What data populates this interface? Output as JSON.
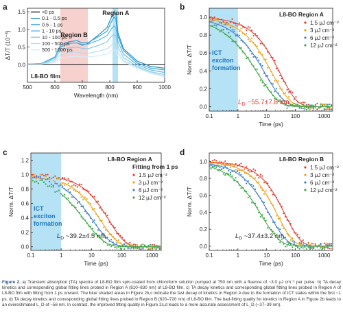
{
  "chart_data": [
    {
      "panel": "a",
      "type": "line",
      "xlabel": "Wavelength (nm)",
      "ylabel": "ΔT/T (10⁻³)",
      "xlim": [
        500,
        1000
      ],
      "ylim": [
        -0.5,
        1.6
      ],
      "xticks": [
        "500",
        "600",
        "700",
        "800",
        "900",
        "1000"
      ],
      "yticks": [
        "0.0",
        "0.5",
        "1.0",
        "1.5"
      ],
      "legend": [
        "<0 ps",
        "0.1 - 0.5 ps",
        "0.5 - 1 ps",
        "1 - 10 ps",
        "10 - 100 ps",
        "100 - 500 ps",
        "500 - 1000 ps"
      ],
      "legend_position": "top-left",
      "annotations": [
        "Region A",
        "Region B",
        "L8-BO film"
      ],
      "shaded": [
        {
          "label": "Region B",
          "from": 620,
          "to": 720,
          "color": "#f6c9c4"
        },
        {
          "label": "Region A",
          "from": 810,
          "to": 830,
          "color": "#a9ddf3"
        }
      ],
      "series_colors": [
        "#222222",
        "#1d8fce",
        "#34a2da",
        "#5db7e4",
        "#88cbec",
        "#b3ddf2",
        "#d6edf8"
      ],
      "series": [
        {
          "name": "<0 ps",
          "x": [
            500,
            550,
            600,
            650,
            700,
            750,
            800,
            850,
            900,
            950,
            1000
          ],
          "values": [
            0,
            0,
            0,
            0,
            0,
            0,
            0,
            0,
            0,
            0,
            0
          ]
        },
        {
          "name": "0.1 - 0.5 ps",
          "x": [
            500,
            550,
            600,
            620,
            650,
            680,
            700,
            720,
            760,
            790,
            805,
            815,
            822,
            830,
            850,
            900,
            950,
            1000
          ],
          "values": [
            0.02,
            0.03,
            0.2,
            0.5,
            0.6,
            0.62,
            0.55,
            0.6,
            0.85,
            1.05,
            1.32,
            1.5,
            1.45,
            0.9,
            0.45,
            0.1,
            -0.05,
            -0.1
          ]
        },
        {
          "name": "0.5 - 1 ps",
          "x": [
            500,
            550,
            600,
            620,
            650,
            680,
            700,
            720,
            760,
            790,
            805,
            815,
            822,
            830,
            850,
            900,
            950,
            1000
          ],
          "values": [
            0.02,
            0.03,
            0.22,
            0.55,
            0.65,
            0.68,
            0.62,
            0.62,
            0.8,
            0.95,
            1.2,
            1.35,
            1.3,
            0.8,
            0.4,
            0.05,
            -0.1,
            -0.15
          ]
        },
        {
          "name": "1 - 10 ps",
          "x": [
            500,
            550,
            600,
            620,
            650,
            680,
            700,
            720,
            760,
            790,
            805,
            815,
            822,
            830,
            850,
            900,
            950,
            1000
          ],
          "values": [
            0.02,
            0.03,
            0.2,
            0.5,
            0.6,
            0.62,
            0.58,
            0.58,
            0.7,
            0.82,
            1.0,
            1.1,
            1.05,
            0.65,
            0.3,
            0.0,
            -0.15,
            -0.22
          ]
        },
        {
          "name": "10 - 100 ps",
          "x": [
            500,
            550,
            600,
            620,
            650,
            680,
            700,
            720,
            760,
            790,
            805,
            815,
            822,
            830,
            850,
            900,
            950,
            1000
          ],
          "values": [
            0.02,
            0.02,
            0.15,
            0.4,
            0.48,
            0.5,
            0.46,
            0.45,
            0.55,
            0.65,
            0.8,
            0.85,
            0.82,
            0.5,
            0.2,
            -0.05,
            -0.2,
            -0.28
          ]
        },
        {
          "name": "100 - 500 ps",
          "x": [
            500,
            550,
            600,
            620,
            650,
            680,
            700,
            720,
            760,
            790,
            805,
            815,
            822,
            830,
            850,
            900,
            950,
            1000
          ],
          "values": [
            0.01,
            0.01,
            0.1,
            0.28,
            0.35,
            0.36,
            0.33,
            0.32,
            0.38,
            0.45,
            0.55,
            0.6,
            0.58,
            0.35,
            0.12,
            -0.08,
            -0.22,
            -0.32
          ]
        },
        {
          "name": "500 - 1000 ps",
          "x": [
            500,
            550,
            600,
            620,
            650,
            680,
            700,
            720,
            760,
            790,
            805,
            815,
            822,
            830,
            850,
            900,
            950,
            1000
          ],
          "values": [
            0.01,
            0.01,
            0.06,
            0.18,
            0.22,
            0.24,
            0.22,
            0.22,
            0.25,
            0.3,
            0.38,
            0.42,
            0.4,
            0.25,
            0.08,
            -0.1,
            -0.25,
            -0.35
          ]
        }
      ]
    },
    {
      "panel": "b",
      "type": "scatter",
      "xscale": "log",
      "xlabel": "Time (ps)",
      "ylabel": "Norm. ΔT/T",
      "xlim": [
        0.1,
        2000
      ],
      "ylim": [
        -0.05,
        1.1
      ],
      "xticks": [
        "0.1",
        "1",
        "10",
        "100",
        "1000"
      ],
      "yticks": [
        "0.0",
        "0.2",
        "0.4",
        "0.6",
        "0.8",
        "1.0"
      ],
      "title": "L8-BO   Region A",
      "annotations": [
        "ICT exciton formation",
        "L_D ~55.7±7.8 nm"
      ],
      "shaded": {
        "from": 0.1,
        "to": 1,
        "color": "#a9ddf3"
      },
      "legend_position": "top-right",
      "series": [
        {
          "name": "1.5 μJ cm⁻²",
          "color": "#e23a2e",
          "tau": 30,
          "beta": 0.75
        },
        {
          "name": "3 μJ cm⁻²",
          "color": "#eba21b",
          "tau": 16,
          "beta": 0.7
        },
        {
          "name": "6 μJ cm⁻²",
          "color": "#3f7fc8",
          "tau": 9,
          "beta": 0.65
        },
        {
          "name": "12 μJ cm⁻²",
          "color": "#3ea846",
          "tau": 5,
          "beta": 0.6
        }
      ]
    },
    {
      "panel": "c",
      "type": "scatter",
      "xscale": "log",
      "xlabel": "Time (ps)",
      "ylabel": "Norm. ΔT/T",
      "xlim": [
        0.1,
        2000
      ],
      "ylim": [
        -0.05,
        1.3
      ],
      "xticks": [
        "0.1",
        "1",
        "10",
        "100",
        "1000"
      ],
      "yticks": [
        "0.0",
        "0.2",
        "0.4",
        "0.6",
        "0.8",
        "1.0",
        "1.2"
      ],
      "title": "L8-BO   Region A",
      "subtitle": "Fitting from 1 ps",
      "annotations": [
        "ICT exciton formation",
        "L_D ~39.2±4.5 nm"
      ],
      "shaded": {
        "from": 0.1,
        "to": 1,
        "color": "#a9ddf3"
      },
      "legend_position": "top-right",
      "series": [
        {
          "name": "1.5 μJ cm⁻²",
          "color": "#e23a2e",
          "tau": 38,
          "beta": 0.8
        },
        {
          "name": "3 μJ cm⁻²",
          "color": "#eba21b",
          "tau": 20,
          "beta": 0.75
        },
        {
          "name": "6 μJ cm⁻²",
          "color": "#3f7fc8",
          "tau": 11,
          "beta": 0.7
        },
        {
          "name": "12 μJ cm⁻²",
          "color": "#3ea846",
          "tau": 6,
          "beta": 0.65
        }
      ]
    },
    {
      "panel": "d",
      "type": "scatter",
      "xscale": "log",
      "xlabel": "Time (ps)",
      "ylabel": "Norm. ΔT/T",
      "xlim": [
        0.1,
        2000
      ],
      "ylim": [
        -0.05,
        1.1
      ],
      "xticks": [
        "0.1",
        "1",
        "10",
        "100",
        "1000"
      ],
      "yticks": [
        "0.0",
        "0.2",
        "0.4",
        "0.6",
        "0.8",
        "1.0"
      ],
      "title": "L8-BO   Region B",
      "annotations": [
        "L_D ~37.4±3.2 nm"
      ],
      "legend_position": "top-right",
      "series": [
        {
          "name": "1.5 μJ cm⁻²",
          "color": "#e23a2e",
          "tau": 45,
          "beta": 0.8
        },
        {
          "name": "3 μJ cm⁻²",
          "color": "#eba21b",
          "tau": 24,
          "beta": 0.78
        },
        {
          "name": "6 μJ cm⁻²",
          "color": "#3f7fc8",
          "tau": 13,
          "beta": 0.72
        },
        {
          "name": "12 μJ cm⁻²",
          "color": "#3ea846",
          "tau": 6.5,
          "beta": 0.66
        }
      ]
    }
  ],
  "caption": {
    "label": "Figure 2.",
    "text": "a) Transient absorption (TA) spectra of L8-BO film spin-coated from chloroform solution pumped at 750 nm with a fluence of ~3.0 μJ cm⁻² per pulse. b) TA decay kinetics and corresponding global fitting lines probed in Region A (810–830 nm) of L8-BO film. c) TA decay kinetics and corresponding global fitting lines probed in Region A of L8-BO film with fitting from 1 ps onward. The blue shaded areas in Figure 2b,c indicate the fast decay of kinetics in Region A due to the formation of ICT states within the first ~1 ps. d) TA decay kinetics and corresponding global fitting lines probed in Region B (620–720 nm) of L8-BO film. The bad-fitting quality for kinetics in Region A in Figure 2b leads to an overestimated L_D of ~56 nm. In contrast, the improved fitting quality in Figure 2c,d leads to a more accurate assessment of L_D (~37–39 nm)."
  }
}
